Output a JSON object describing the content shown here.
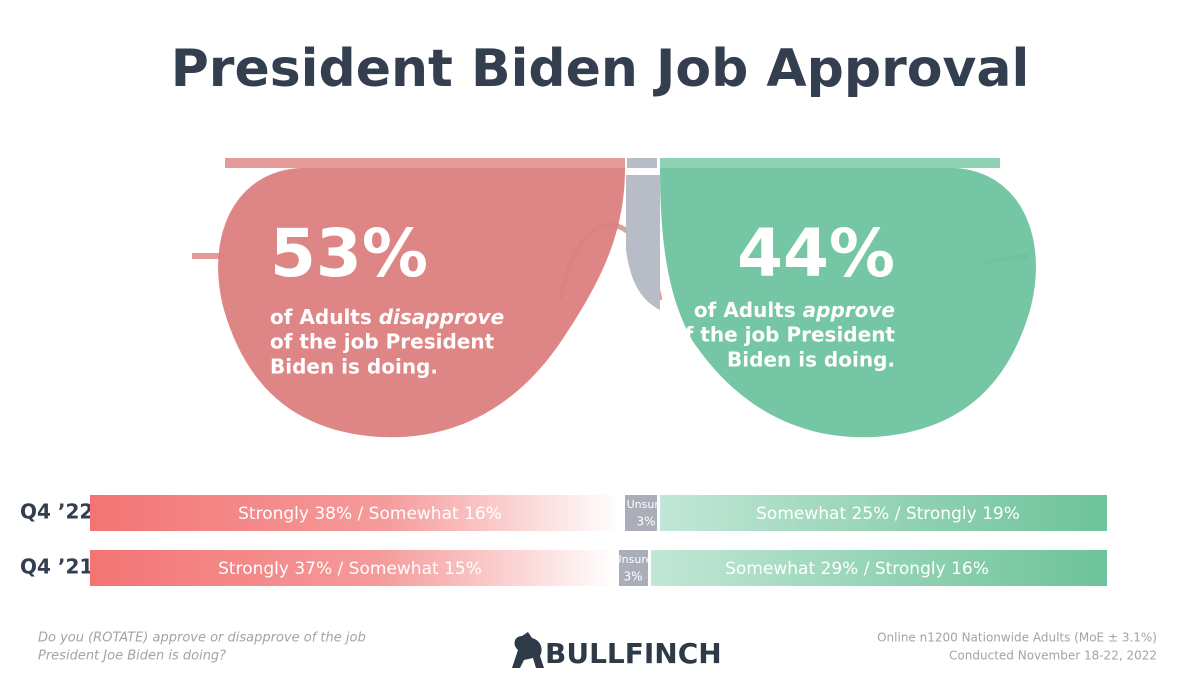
{
  "title": "President Biden Job Approval",
  "disapprove": {
    "percent": "53%",
    "line1_pre": "of Adults ",
    "line1_em": "disapprove",
    "line2": "of the job President",
    "line3": "Biden is doing."
  },
  "approve": {
    "percent": "44%",
    "line1_pre": "of Adults ",
    "line1_em": "approve",
    "line2": "of the job President",
    "line3": "Biden is doing."
  },
  "rows": [
    {
      "label": "Q4 ’22",
      "disapprove": "Strongly 38% / Somewhat 16%",
      "unsure": "Unsure",
      "unsure_value": "3%",
      "approve": "Somewhat 25% / Strongly 19%"
    },
    {
      "label": "Q4 ’21",
      "disapprove": "Strongly 37% / Somewhat 15%",
      "unsure": "Unsure",
      "unsure_value": "3%",
      "approve": "Somewhat 29% / Strongly 16%"
    }
  ],
  "footer": {
    "question": [
      "Do you (ROTATE) approve or disapprove of the job",
      "President Joe Biden is doing?"
    ],
    "brand": "BULLFINCH",
    "method": [
      "Online n1200 Nationwide Adults (MoE ± 3.1%)",
      "Conducted November 18-22, 2022"
    ]
  }
}
